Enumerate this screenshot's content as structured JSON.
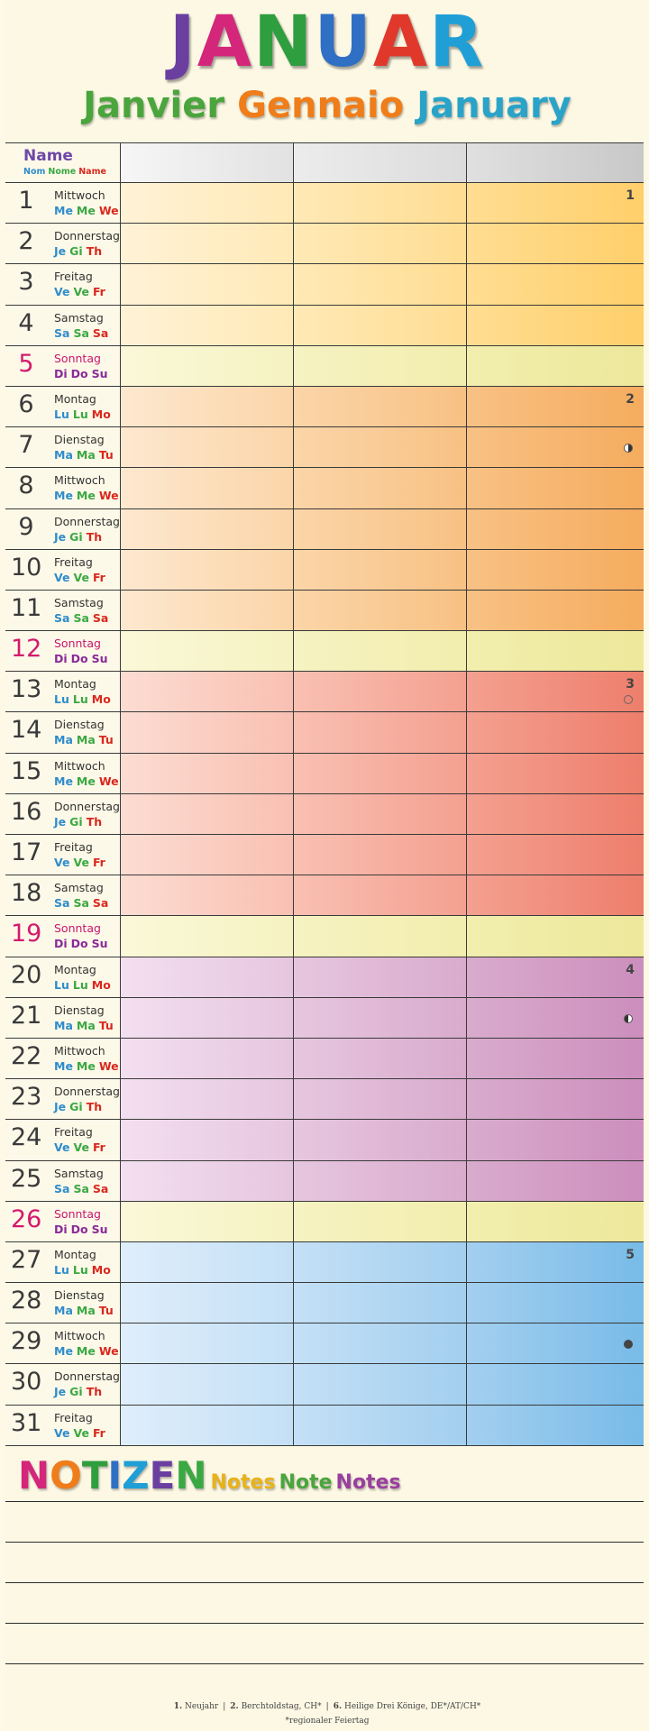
{
  "title": {
    "letters": [
      {
        "ch": "J",
        "color": "#6a3fa0"
      },
      {
        "ch": "A",
        "color": "#d4267a"
      },
      {
        "ch": "N",
        "color": "#2f9e3f"
      },
      {
        "ch": "U",
        "color": "#2f6fc4"
      },
      {
        "ch": "A",
        "color": "#e0392b"
      },
      {
        "ch": "R",
        "color": "#1f9fd6"
      }
    ],
    "subtitle_words": [
      {
        "text": "Janvier",
        "color": "#4aa53c"
      },
      {
        "text": "Gennaio",
        "color": "#ef7d1a"
      },
      {
        "text": "January",
        "color": "#2aa3c9"
      }
    ]
  },
  "header": {
    "name_label": "Name",
    "name_sub": [
      {
        "text": "Nom",
        "color": "#2e8ccc"
      },
      {
        "text": "Nome",
        "color": "#3aa843"
      },
      {
        "text": "Name",
        "color": "#d9281e"
      }
    ]
  },
  "days": [
    {
      "n": "1",
      "name": "Mittwoch",
      "abbr": [
        "Me",
        "Me",
        "We"
      ],
      "group": "g1",
      "sun": false,
      "week": "1"
    },
    {
      "n": "2",
      "name": "Donnerstag",
      "abbr": [
        "Je",
        "Gi",
        "Th"
      ],
      "group": "g1",
      "sun": false
    },
    {
      "n": "3",
      "name": "Freitag",
      "abbr": [
        "Ve",
        "Ve",
        "Fr"
      ],
      "group": "g1",
      "sun": false
    },
    {
      "n": "4",
      "name": "Samstag",
      "abbr": [
        "Sa",
        "Sa",
        "Sa"
      ],
      "group": "g1",
      "sun": false
    },
    {
      "n": "5",
      "name": "Sonntag",
      "abbr": [
        "Di",
        "Do",
        "Su"
      ],
      "group": "g1",
      "sun": true
    },
    {
      "n": "6",
      "name": "Montag",
      "abbr": [
        "Lu",
        "Lu",
        "Mo"
      ],
      "group": "g2",
      "sun": false,
      "week": "2"
    },
    {
      "n": "7",
      "name": "Dienstag",
      "abbr": [
        "Ma",
        "Ma",
        "Tu"
      ],
      "group": "g2",
      "sun": false,
      "moon": "first-quarter"
    },
    {
      "n": "8",
      "name": "Mittwoch",
      "abbr": [
        "Me",
        "Me",
        "We"
      ],
      "group": "g2",
      "sun": false
    },
    {
      "n": "9",
      "name": "Donnerstag",
      "abbr": [
        "Je",
        "Gi",
        "Th"
      ],
      "group": "g2",
      "sun": false
    },
    {
      "n": "10",
      "name": "Freitag",
      "abbr": [
        "Ve",
        "Ve",
        "Fr"
      ],
      "group": "g2",
      "sun": false
    },
    {
      "n": "11",
      "name": "Samstag",
      "abbr": [
        "Sa",
        "Sa",
        "Sa"
      ],
      "group": "g2",
      "sun": false
    },
    {
      "n": "12",
      "name": "Sonntag",
      "abbr": [
        "Di",
        "Do",
        "Su"
      ],
      "group": "g2",
      "sun": true
    },
    {
      "n": "13",
      "name": "Montag",
      "abbr": [
        "Lu",
        "Lu",
        "Mo"
      ],
      "group": "g3",
      "sun": false,
      "week": "3",
      "moon": "full"
    },
    {
      "n": "14",
      "name": "Dienstag",
      "abbr": [
        "Ma",
        "Ma",
        "Tu"
      ],
      "group": "g3",
      "sun": false
    },
    {
      "n": "15",
      "name": "Mittwoch",
      "abbr": [
        "Me",
        "Me",
        "We"
      ],
      "group": "g3",
      "sun": false
    },
    {
      "n": "16",
      "name": "Donnerstag",
      "abbr": [
        "Je",
        "Gi",
        "Th"
      ],
      "group": "g3",
      "sun": false
    },
    {
      "n": "17",
      "name": "Freitag",
      "abbr": [
        "Ve",
        "Ve",
        "Fr"
      ],
      "group": "g3",
      "sun": false
    },
    {
      "n": "18",
      "name": "Samstag",
      "abbr": [
        "Sa",
        "Sa",
        "Sa"
      ],
      "group": "g3",
      "sun": false
    },
    {
      "n": "19",
      "name": "Sonntag",
      "abbr": [
        "Di",
        "Do",
        "Su"
      ],
      "group": "g3",
      "sun": true
    },
    {
      "n": "20",
      "name": "Montag",
      "abbr": [
        "Lu",
        "Lu",
        "Mo"
      ],
      "group": "g4",
      "sun": false,
      "week": "4"
    },
    {
      "n": "21",
      "name": "Dienstag",
      "abbr": [
        "Ma",
        "Ma",
        "Tu"
      ],
      "group": "g4",
      "sun": false,
      "moon": "last-quarter"
    },
    {
      "n": "22",
      "name": "Mittwoch",
      "abbr": [
        "Me",
        "Me",
        "We"
      ],
      "group": "g4",
      "sun": false
    },
    {
      "n": "23",
      "name": "Donnerstag",
      "abbr": [
        "Je",
        "Gi",
        "Th"
      ],
      "group": "g4",
      "sun": false
    },
    {
      "n": "24",
      "name": "Freitag",
      "abbr": [
        "Ve",
        "Ve",
        "Fr"
      ],
      "group": "g4",
      "sun": false
    },
    {
      "n": "25",
      "name": "Samstag",
      "abbr": [
        "Sa",
        "Sa",
        "Sa"
      ],
      "group": "g4",
      "sun": false
    },
    {
      "n": "26",
      "name": "Sonntag",
      "abbr": [
        "Di",
        "Do",
        "Su"
      ],
      "group": "g4",
      "sun": true
    },
    {
      "n": "27",
      "name": "Montag",
      "abbr": [
        "Lu",
        "Lu",
        "Mo"
      ],
      "group": "g5",
      "sun": false,
      "week": "5"
    },
    {
      "n": "28",
      "name": "Dienstag",
      "abbr": [
        "Ma",
        "Ma",
        "Tu"
      ],
      "group": "g5",
      "sun": false
    },
    {
      "n": "29",
      "name": "Mittwoch",
      "abbr": [
        "Me",
        "Me",
        "We"
      ],
      "group": "g5",
      "sun": false,
      "moon": "new"
    },
    {
      "n": "30",
      "name": "Donnerstag",
      "abbr": [
        "Je",
        "Gi",
        "Th"
      ],
      "group": "g5",
      "sun": false
    },
    {
      "n": "31",
      "name": "Freitag",
      "abbr": [
        "Ve",
        "Ve",
        "Fr"
      ],
      "group": "g5",
      "sun": false
    }
  ],
  "notes": {
    "title_letters": [
      {
        "ch": "N",
        "color": "#d4267a"
      },
      {
        "ch": "O",
        "color": "#ef7d1a"
      },
      {
        "ch": "T",
        "color": "#2f9e3f"
      },
      {
        "ch": "I",
        "color": "#2f6fc4"
      },
      {
        "ch": "Z",
        "color": "#1f9fd6"
      },
      {
        "ch": "E",
        "color": "#6a3fa0"
      },
      {
        "ch": "N",
        "color": "#3aa843"
      }
    ],
    "sub_words": [
      {
        "text": "Notes",
        "color": "#e8b21a"
      },
      {
        "text": "Note",
        "color": "#4aa53c"
      },
      {
        "text": "Notes",
        "color": "#9a3f9e"
      }
    ]
  },
  "footer": {
    "holidays": [
      {
        "day": "1.",
        "text": "Neujahr"
      },
      {
        "day": "2.",
        "text": "Berchtoldstag, CH*"
      },
      {
        "day": "6.",
        "text": "Heilige Drei Könige, DE*/AT/CH*"
      }
    ],
    "separator": "|",
    "note": "*regionaler Feiertag"
  }
}
